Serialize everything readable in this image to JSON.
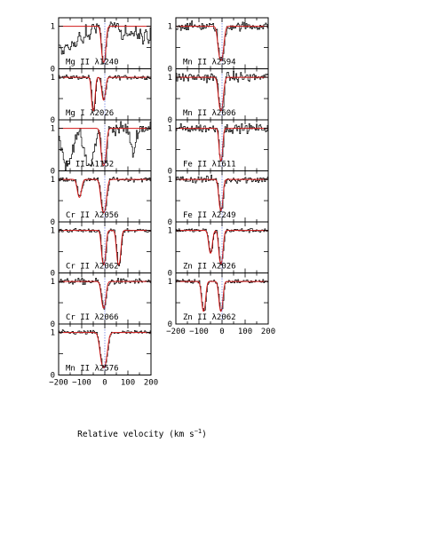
{
  "figure": {
    "xlabel": "Relative velocity (km s",
    "xlabel_sup": "−1",
    "xlabel_close": ")"
  },
  "chart_data": [
    {
      "type": "line",
      "col": 0,
      "row": 0,
      "label": "Mg II λ1240",
      "xlim": [
        -200,
        200
      ],
      "ylim": [
        0,
        1.2
      ],
      "yticks": [
        0,
        0.5,
        1
      ],
      "lines": [
        {
          "v": -5,
          "depth": 0.85,
          "width": 7
        }
      ],
      "noise": 0.12,
      "model_span": [
        -200,
        200
      ],
      "clipped": false,
      "extra": "mgii"
    },
    {
      "type": "line",
      "col": 0,
      "row": 1,
      "label": "Mg I λ2026",
      "xlim": [
        -200,
        200
      ],
      "ylim": [
        0,
        1.2
      ],
      "yticks": [
        0,
        0.5,
        1
      ],
      "lines": [
        {
          "v": -50,
          "depth": 0.7,
          "width": 6
        },
        {
          "v": -5,
          "depth": 0.35,
          "width": 7
        }
      ],
      "noise": 0.05,
      "model_span": [
        -200,
        200
      ]
    },
    {
      "type": "line",
      "col": 0,
      "row": 2,
      "label": "P II λ1152",
      "xlim": [
        -200,
        200
      ],
      "ylim": [
        0,
        1.2
      ],
      "yticks": [
        0,
        0.5,
        1
      ],
      "lines": [
        {
          "v": -5,
          "depth": 0.95,
          "width": 8
        }
      ],
      "noise": 0.15,
      "model_span": [
        -200,
        200
      ],
      "extra": "pii"
    },
    {
      "type": "line",
      "col": 0,
      "row": 3,
      "label": "Cr II λ2056",
      "xlim": [
        -200,
        200
      ],
      "ylim": [
        0,
        1.2
      ],
      "yticks": [
        0,
        0.5,
        1
      ],
      "lines": [
        {
          "v": -110,
          "depth": 0.25,
          "width": 8
        },
        {
          "v": -5,
          "depth": 0.7,
          "width": 9
        }
      ],
      "noise": 0.05,
      "model_span": [
        -200,
        200
      ]
    },
    {
      "type": "line",
      "col": 0,
      "row": 4,
      "label": "Cr II λ2062",
      "xlim": [
        -200,
        200
      ],
      "ylim": [
        0,
        1.2
      ],
      "yticks": [
        0,
        0.5,
        1
      ],
      "lines": [
        {
          "v": -5,
          "depth": 0.75,
          "width": 7
        },
        {
          "v": 60,
          "depth": 0.75,
          "width": 7
        }
      ],
      "noise": 0.05,
      "model_span": [
        -200,
        200
      ]
    },
    {
      "type": "line",
      "col": 0,
      "row": 5,
      "label": "Cr II λ2066",
      "xlim": [
        -200,
        200
      ],
      "ylim": [
        0,
        1.2
      ],
      "yticks": [
        0,
        0.5,
        1
      ],
      "lines": [
        {
          "v": -5,
          "depth": 0.45,
          "width": 8
        }
      ],
      "noise": 0.07,
      "model_span": [
        -200,
        200
      ]
    },
    {
      "type": "line",
      "col": 0,
      "row": 6,
      "label": "Mn II λ2576",
      "xlim": [
        -200,
        200
      ],
      "ylim": [
        0,
        1.2
      ],
      "yticks": [
        0,
        0.5,
        1
      ],
      "lines": [
        {
          "v": -5,
          "depth": 0.8,
          "width": 11
        }
      ],
      "noise": 0.05,
      "model_span": [
        -200,
        200
      ]
    },
    {
      "type": "line",
      "col": 1,
      "row": 0,
      "label": "Mn II λ2594",
      "xlim": [
        -200,
        200
      ],
      "ylim": [
        0,
        1.2
      ],
      "yticks": [
        0,
        0.5,
        1
      ],
      "lines": [
        {
          "v": -5,
          "depth": 0.75,
          "width": 9
        }
      ],
      "noise": 0.1,
      "model_span": [
        -200,
        200
      ]
    },
    {
      "type": "line",
      "col": 1,
      "row": 1,
      "label": "Mn II λ2606",
      "xlim": [
        -200,
        200
      ],
      "ylim": [
        0,
        1.2
      ],
      "yticks": [
        0,
        0.5,
        1
      ],
      "lines": [
        {
          "v": -5,
          "depth": 0.7,
          "width": 8
        }
      ],
      "noise": 0.12,
      "model_span": [
        -200,
        200
      ]
    },
    {
      "type": "line",
      "col": 1,
      "row": 2,
      "label": "Fe II λ1611",
      "xlim": [
        -200,
        200
      ],
      "ylim": [
        0,
        1.2
      ],
      "yticks": [
        0,
        0.5,
        1
      ],
      "lines": [
        {
          "v": -5,
          "depth": 0.65,
          "width": 6
        }
      ],
      "noise": 0.1,
      "model_span": [
        -200,
        200
      ]
    },
    {
      "type": "line",
      "col": 1,
      "row": 3,
      "label": "Fe II λ2249",
      "xlim": [
        -200,
        200
      ],
      "ylim": [
        0,
        1.2
      ],
      "yticks": [
        0,
        0.5,
        1
      ],
      "lines": [
        {
          "v": -5,
          "depth": 0.6,
          "width": 7
        }
      ],
      "noise": 0.09,
      "model_span": [
        -200,
        200
      ]
    },
    {
      "type": "line",
      "col": 1,
      "row": 4,
      "label": "Zn II λ2026",
      "xlim": [
        -200,
        200
      ],
      "ylim": [
        0,
        1.2
      ],
      "yticks": [
        0,
        0.5,
        1
      ],
      "lines": [
        {
          "v": -50,
          "depth": 0.35,
          "width": 7
        },
        {
          "v": -5,
          "depth": 0.7,
          "width": 7
        }
      ],
      "noise": 0.05,
      "model_span": [
        -200,
        200
      ]
    },
    {
      "type": "line",
      "col": 1,
      "row": 5,
      "label": "Zn II λ2062",
      "xlim": [
        -200,
        200
      ],
      "ylim": [
        0,
        1.2
      ],
      "yticks": [
        0,
        0.5,
        1
      ],
      "lines": [
        {
          "v": -80,
          "depth": 0.55,
          "width": 7
        },
        {
          "v": -5,
          "depth": 0.55,
          "width": 7
        }
      ],
      "noise": 0.05,
      "model_span": [
        -200,
        200
      ]
    }
  ]
}
